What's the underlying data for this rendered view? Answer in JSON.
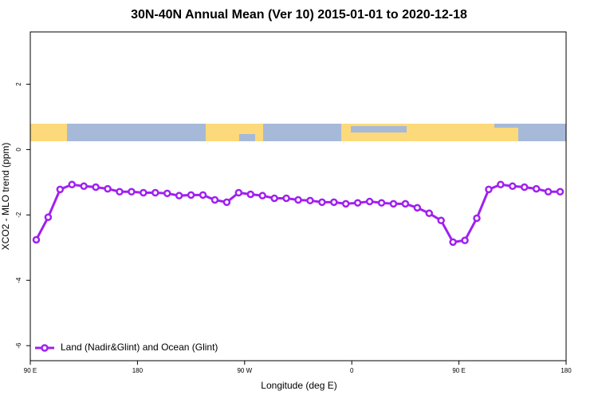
{
  "chart_data": {
    "type": "line",
    "title": "30N-40N Annual Mean (Ver 10)   2015-01-01 to 2020-12-18",
    "x_label": "Longitude (deg E)",
    "y_label": "XCO2 - MLO trend (ppm)",
    "x": [
      95,
      105,
      115,
      125,
      135,
      145,
      155,
      165,
      175,
      185,
      195,
      205,
      215,
      225,
      235,
      245,
      255,
      265,
      275,
      285,
      295,
      305,
      315,
      325,
      335,
      345,
      355,
      365,
      375,
      385,
      395,
      405,
      415,
      425,
      435,
      445,
      455,
      465,
      475,
      485,
      495,
      505,
      515,
      525,
      535
    ],
    "series": [
      {
        "name": "Land (Nadir&Glint) and Ocean (Glint)",
        "color": "#a020f0",
        "values": [
          -2.76,
          -2.07,
          -1.22,
          -1.07,
          -1.12,
          -1.15,
          -1.2,
          -1.29,
          -1.29,
          -1.32,
          -1.32,
          -1.34,
          -1.41,
          -1.39,
          -1.39,
          -1.54,
          -1.61,
          -1.32,
          -1.37,
          -1.41,
          -1.49,
          -1.49,
          -1.54,
          -1.56,
          -1.61,
          -1.61,
          -1.66,
          -1.63,
          -1.59,
          -1.63,
          -1.66,
          -1.66,
          -1.78,
          -1.95,
          -2.17,
          -2.83,
          -2.78,
          -2.1,
          -1.22,
          -1.07,
          -1.12,
          -1.15,
          -1.2,
          -1.29,
          -1.29
        ]
      }
    ],
    "xlim": [
      90,
      540
    ],
    "xticks": [
      {
        "value": 90,
        "label": "90 E"
      },
      180,
      {
        "value": 270,
        "label": "90 W"
      },
      {
        "value": 360,
        "label": "0"
      },
      {
        "value": 450,
        "label": "90 E"
      },
      {
        "value": 540,
        "label": "180"
      }
    ],
    "ylim": [
      -6.46,
      3.6
    ],
    "yticks": [
      -6,
      -4,
      -2,
      0,
      2
    ],
    "legend": "bottom-left"
  }
}
